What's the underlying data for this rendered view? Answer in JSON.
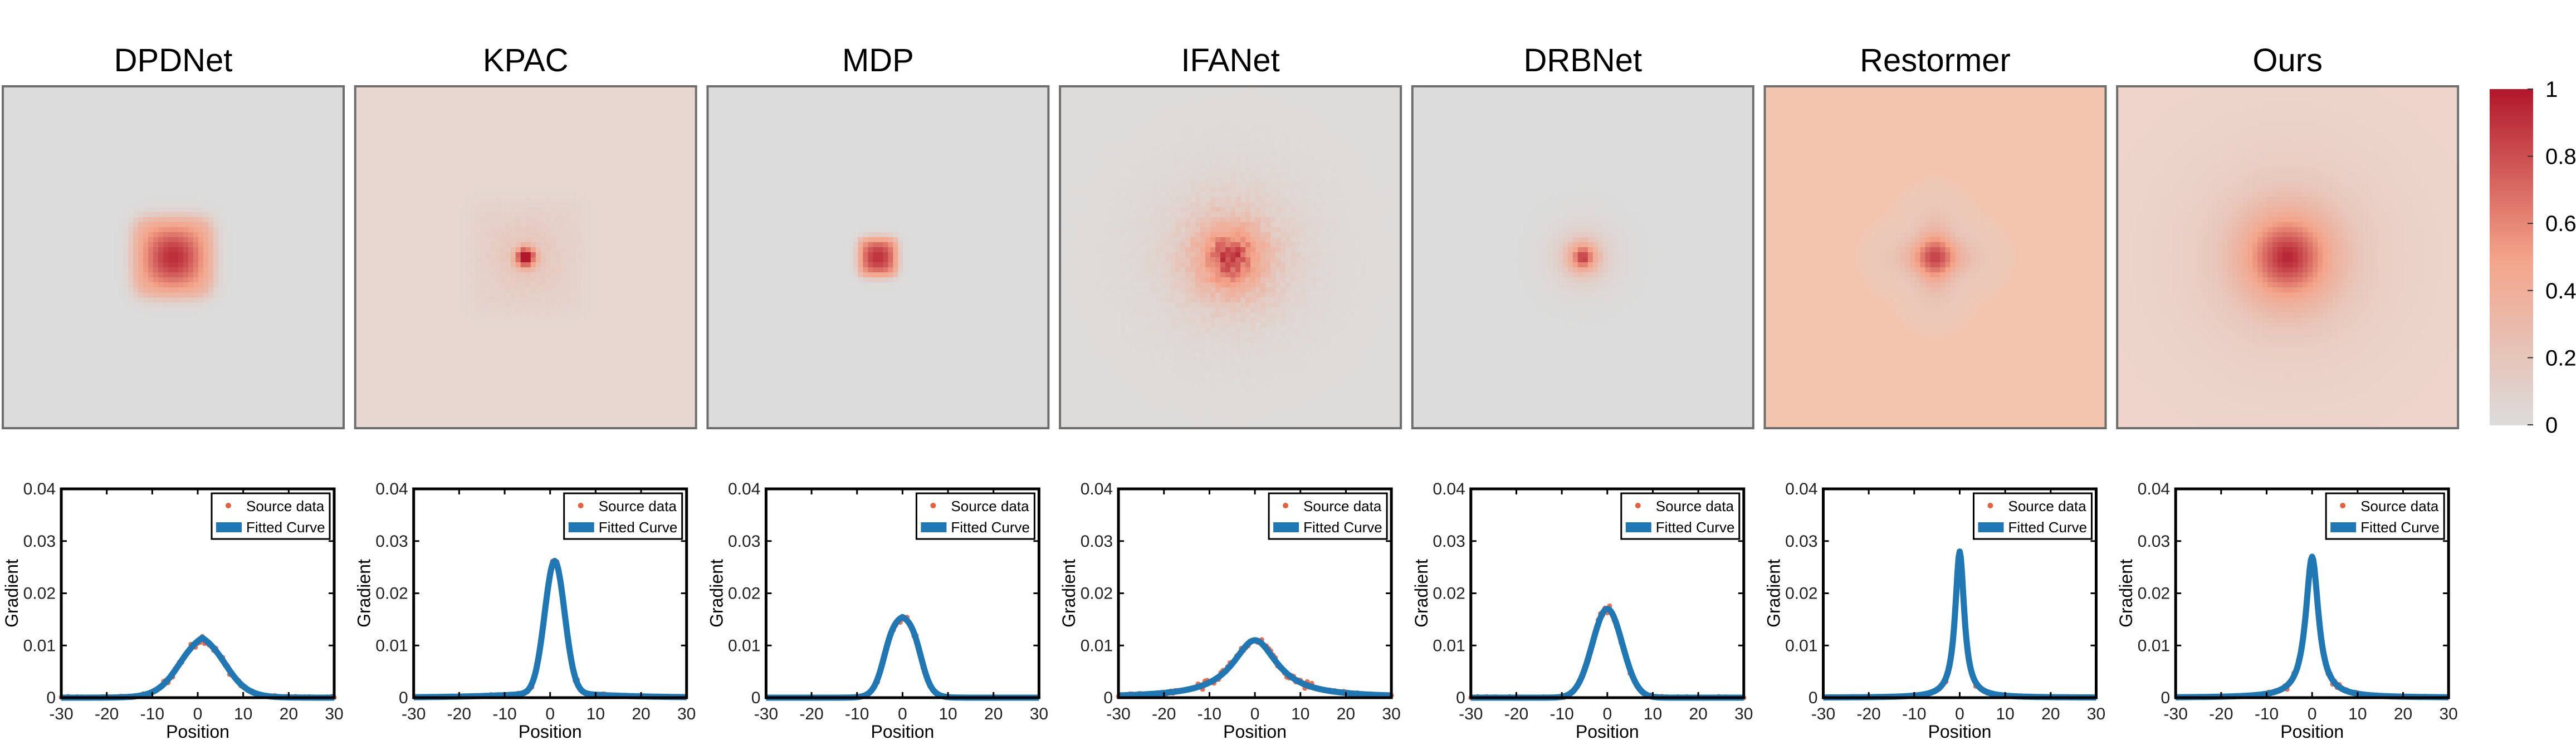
{
  "methods": [
    {
      "name": "DPDNet",
      "heatmap": {
        "shape": "square",
        "background": "#dcdcdc",
        "peak": 0.93,
        "half_width": 12,
        "softness": 2,
        "blur": 5.5,
        "noise": 0.0
      },
      "profile": {
        "peak": 0.013,
        "center": 1,
        "half_width": 5,
        "softness": 2.5,
        "tail": 0,
        "data_extent": 30
      }
    },
    {
      "name": "KPAC",
      "heatmap": {
        "shape": "gaussian",
        "background": "#e7d7d0",
        "peak": 1.0,
        "sigma": 1.8,
        "halo": 0.16,
        "halo_half": 18,
        "noise": 0.04
      },
      "profile": {
        "peak": 0.025,
        "center": 1,
        "sigma": 2.2,
        "tail": 0.0012,
        "data_extent": 13
      }
    },
    {
      "name": "MDP",
      "heatmap": {
        "shape": "square",
        "background": "#dcdcdc",
        "peak": 0.92,
        "half_width": 6,
        "softness": 1,
        "blur": 4,
        "noise": 0.0
      },
      "profile": {
        "peak": 0.016,
        "center": 0,
        "half_width": 4,
        "softness": 1.2,
        "tail": 0,
        "data_extent": 6
      }
    },
    {
      "name": "IFANet",
      "heatmap": {
        "shape": "radial",
        "background": "#dedcda",
        "peak": 0.9,
        "sigma": 22,
        "noise": 0.08
      },
      "profile": {
        "peak": 0.011,
        "center": 0,
        "gamma": 6,
        "tail": 0,
        "data_extent": 30
      }
    },
    {
      "name": "DRBNet",
      "heatmap": {
        "shape": "radial",
        "background": "#dcdcdc",
        "peak": 0.92,
        "sigma": 9,
        "noise": 0.02
      },
      "profile": {
        "peak": 0.017,
        "center": 0,
        "sigma": 3.3,
        "tail": 0,
        "data_extent": 30
      }
    },
    {
      "name": "Restormer",
      "heatmap": {
        "shape": "cross",
        "background": "#f3c4ae",
        "peak": 0.95,
        "sigma": 4,
        "arm_len": 18,
        "arm_wid": 6,
        "noise": 0.0
      },
      "profile": {
        "peak": 0.028,
        "center": 0,
        "gamma": 1.2,
        "tail": 0,
        "data_extent": 6
      }
    },
    {
      "name": "Ours",
      "heatmap": {
        "shape": "radial",
        "background": "#f1d4c9",
        "peak": 0.97,
        "sigma": 30,
        "noise": 0.0
      },
      "profile": {
        "peak": 0.027,
        "center": 0,
        "gamma": 1.7,
        "tail": 0,
        "data_extent": 10
      }
    }
  ],
  "colorbar": {
    "ticks": [
      "0",
      "0.2",
      "0.4",
      "0.6",
      "0.8",
      "1"
    ],
    "tick_values": [
      0,
      0.2,
      0.4,
      0.6,
      0.8,
      1
    ],
    "low_color": "#dcdcdc",
    "mid_color": "#f4a48a",
    "high_color": "#b2182b"
  },
  "chart_data": {
    "type": "line",
    "x_range": [
      -30,
      30
    ],
    "y_range": [
      0,
      0.04
    ],
    "x_ticks": [
      -30,
      -20,
      -10,
      0,
      10,
      20,
      30
    ],
    "y_ticks": [
      0,
      0.01,
      0.02,
      0.03,
      0.04
    ],
    "x_tick_labels": [
      "-30",
      "-20",
      "-10",
      "0",
      "10",
      "20",
      "30"
    ],
    "y_tick_labels": [
      "0",
      "0.01",
      "0.02",
      "0.03",
      "0.04"
    ],
    "xlabel": "Position",
    "ylabel": "Gradient",
    "legend": {
      "position": "top-right",
      "entries": [
        "Source data",
        "Fitted Curve"
      ]
    },
    "series_colors": {
      "Source data": "#e8603c",
      "Fitted Curve": "#1f77b4"
    },
    "series": [
      {
        "panel": "DPDNet",
        "peak_x": 1,
        "peak_y": 0.013
      },
      {
        "panel": "KPAC",
        "peak_x": 1,
        "peak_y": 0.025
      },
      {
        "panel": "MDP",
        "peak_x": 0,
        "peak_y": 0.016
      },
      {
        "panel": "IFANet",
        "peak_x": 0,
        "peak_y": 0.011
      },
      {
        "panel": "DRBNet",
        "peak_x": 0,
        "peak_y": 0.017
      },
      {
        "panel": "Restormer",
        "peak_x": 0,
        "peak_y": 0.028
      },
      {
        "panel": "Ours",
        "peak_x": 0,
        "peak_y": 0.027
      }
    ]
  }
}
